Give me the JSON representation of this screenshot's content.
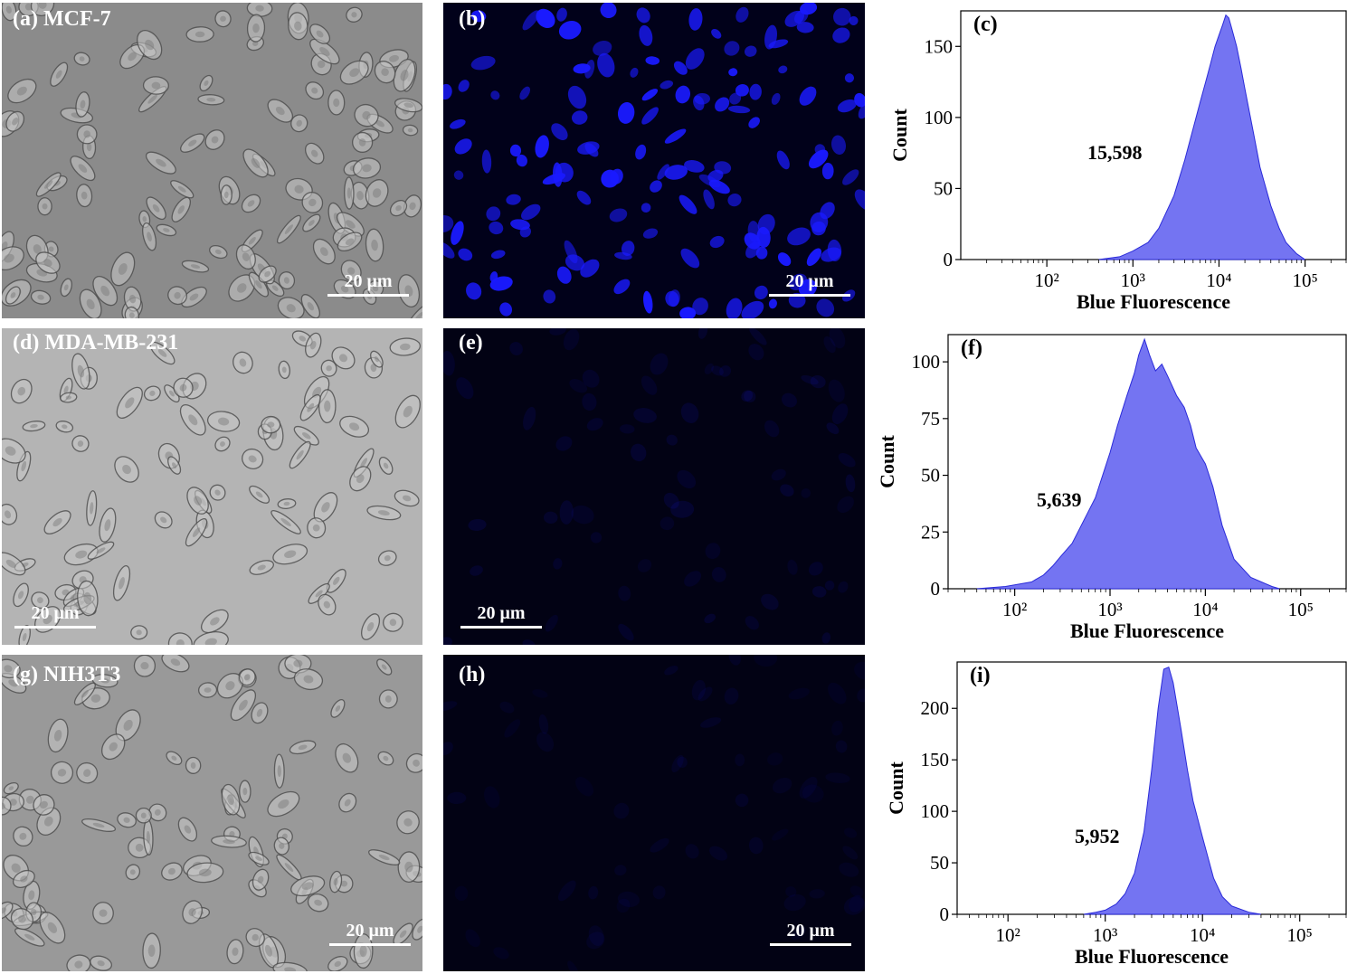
{
  "figure": {
    "scale_bar_label": "20 μm",
    "rows": [
      {
        "micrograph_label": "(a) MCF-7",
        "fluorescence_label": "(b)",
        "fluorescence_intensity": 1.0
      },
      {
        "micrograph_label": "(d) MDA-MB-231",
        "fluorescence_label": "(e)",
        "fluorescence_intensity": 0.12
      },
      {
        "micrograph_label": "(g) NIH3T3",
        "fluorescence_label": "(h)",
        "fluorescence_intensity": 0.08
      }
    ]
  },
  "chart_data": [
    {
      "type": "area",
      "panel_label": "(c)",
      "annotation": "15,598",
      "xlabel": "Blue Fluorescence",
      "ylabel": "Count",
      "x_scale": "log",
      "xlim": [
        10,
        300000
      ],
      "ylim": [
        0,
        175
      ],
      "x_ticks": [
        "10²",
        "10³",
        "10⁴",
        "10⁵"
      ],
      "y_ticks": [
        0,
        50,
        100,
        150
      ],
      "color": "#7474f2",
      "x": [
        400,
        700,
        1000,
        1500,
        2000,
        3000,
        4000,
        5000,
        6000,
        7000,
        8000,
        9000,
        10000,
        11000,
        12000,
        13000,
        14000,
        16000,
        18000,
        20000,
        25000,
        30000,
        40000,
        50000,
        60000,
        80000,
        100000
      ],
      "y": [
        0,
        2,
        6,
        12,
        22,
        45,
        70,
        92,
        110,
        125,
        138,
        150,
        158,
        165,
        172,
        170,
        163,
        150,
        135,
        120,
        90,
        65,
        38,
        22,
        12,
        4,
        0
      ]
    },
    {
      "type": "area",
      "panel_label": "(f)",
      "annotation": "5,639",
      "xlabel": "Blue Fluorescence",
      "ylabel": "Count",
      "x_scale": "log",
      "xlim": [
        20,
        300000
      ],
      "ylim": [
        0,
        112
      ],
      "x_ticks": [
        "10²",
        "10³",
        "10⁴",
        "10⁵"
      ],
      "y_ticks": [
        0,
        25,
        50,
        75,
        100
      ],
      "color": "#7474f2",
      "x": [
        40,
        80,
        150,
        200,
        250,
        300,
        400,
        500,
        700,
        1000,
        1200,
        1500,
        1800,
        2000,
        2300,
        2600,
        3000,
        3500,
        4000,
        5000,
        6000,
        7000,
        8000,
        10000,
        12000,
        15000,
        20000,
        30000,
        50000,
        60000
      ],
      "y": [
        0,
        1,
        3,
        6,
        10,
        14,
        20,
        28,
        40,
        60,
        72,
        85,
        95,
        103,
        110,
        103,
        96,
        99,
        94,
        85,
        80,
        72,
        62,
        55,
        45,
        28,
        13,
        5,
        1,
        0
      ]
    },
    {
      "type": "area",
      "panel_label": "(i)",
      "annotation": "5,952",
      "xlabel": "Blue Fluorescence",
      "ylabel": "Count",
      "x_scale": "log",
      "xlim": [
        30,
        300000
      ],
      "ylim": [
        0,
        245
      ],
      "x_ticks": [
        "10²",
        "10³",
        "10⁴",
        "10⁵"
      ],
      "y_ticks": [
        0,
        50,
        100,
        150,
        200
      ],
      "color": "#7474f2",
      "x": [
        600,
        800,
        1000,
        1300,
        1600,
        2000,
        2500,
        3000,
        3500,
        4000,
        4500,
        5000,
        6000,
        7000,
        8000,
        10000,
        13000,
        16000,
        20000,
        30000,
        40000
      ],
      "y": [
        0,
        2,
        4,
        10,
        20,
        40,
        80,
        140,
        200,
        238,
        240,
        225,
        180,
        140,
        110,
        75,
        35,
        17,
        8,
        2,
        0
      ]
    }
  ]
}
